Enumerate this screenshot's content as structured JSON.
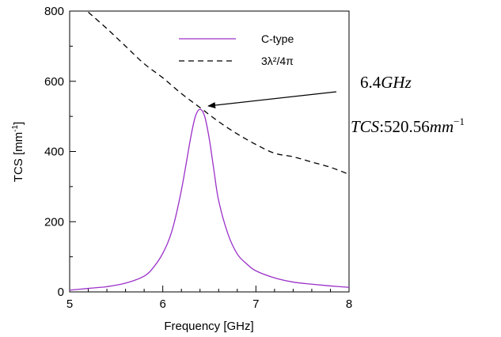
{
  "chart_data": {
    "type": "line",
    "xlabel": "Frequency [GHz]",
    "ylabel": "TCS [mm",
    "ylabel_sup": "-1",
    "ylabel_close": "]",
    "xlim": [
      5,
      8
    ],
    "ylim": [
      0,
      800
    ],
    "xticks": [
      5,
      6,
      7,
      8
    ],
    "yticks": [
      0,
      200,
      400,
      600,
      800
    ],
    "xtick_labels": [
      "5",
      "6",
      "7",
      "8"
    ],
    "ytick_labels": [
      "0",
      "200",
      "400",
      "600",
      "800"
    ],
    "grid": false,
    "legend_position": "top-right",
    "series": [
      {
        "name": "C-type",
        "color": "#9b30c8",
        "style": "solid",
        "x": [
          5.0,
          5.2,
          5.4,
          5.6,
          5.8,
          5.9,
          6.0,
          6.1,
          6.2,
          6.3,
          6.35,
          6.4,
          6.45,
          6.5,
          6.55,
          6.6,
          6.7,
          6.8,
          6.9,
          7.0,
          7.2,
          7.4,
          7.6,
          7.8,
          8.0
        ],
        "y": [
          5,
          10,
          15,
          25,
          45,
          70,
          110,
          175,
          290,
          440,
          500,
          520,
          500,
          435,
          345,
          260,
          165,
          108,
          80,
          60,
          40,
          28,
          22,
          17,
          13
        ]
      },
      {
        "name": "3λ²/4π",
        "color": "#000000",
        "style": "dashed",
        "x": [
          5.2,
          5.4,
          5.6,
          5.8,
          6.0,
          6.2,
          6.4,
          6.6,
          6.8,
          7.0,
          7.2,
          7.4,
          7.6,
          7.8,
          8.0
        ],
        "y": [
          797,
          750,
          700,
          650,
          610,
          565,
          525,
          485,
          450,
          420,
          395,
          385,
          370,
          355,
          335
        ]
      }
    ],
    "annotation": {
      "x": 6.42,
      "y": 520.56,
      "freq_value": "6.4",
      "freq_unit": "GHz",
      "tcs_name": "TCS",
      "tcs_sep": ":",
      "tcs_value": "520.56",
      "tcs_unit": "mm",
      "tcs_exp": "−1"
    }
  }
}
